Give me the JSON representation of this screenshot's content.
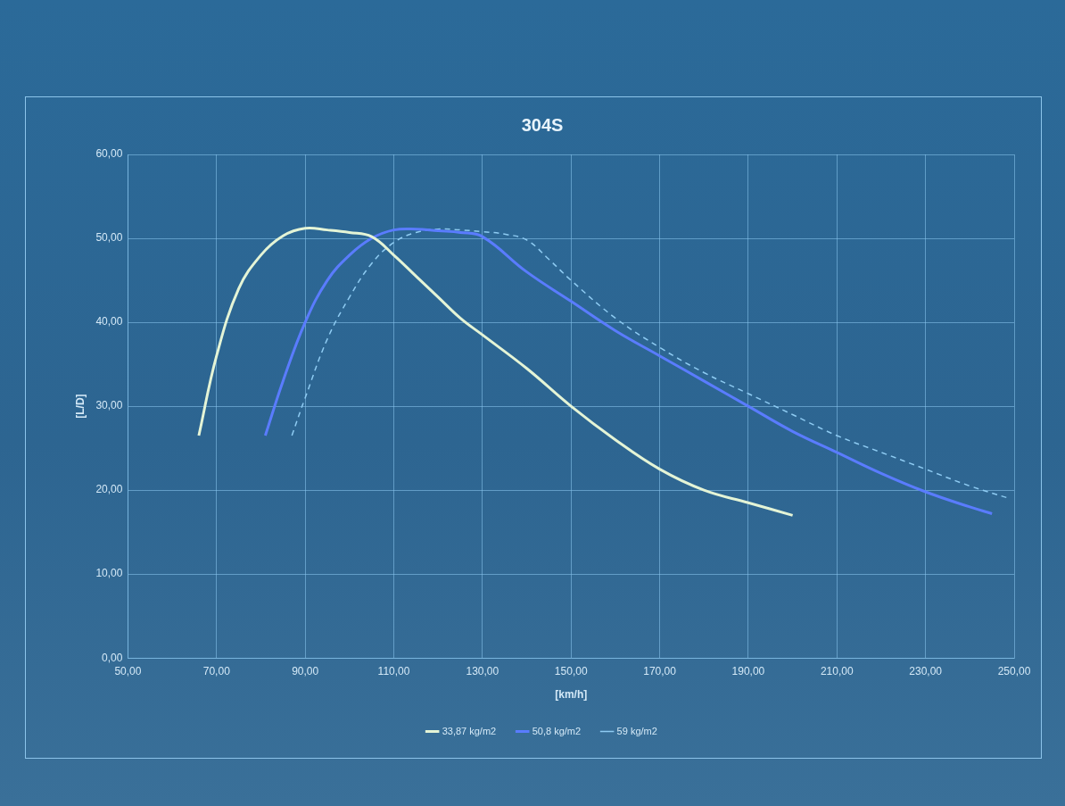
{
  "chart_data": {
    "type": "line",
    "title": "304S",
    "x_label": "[km/h]",
    "y_label": "[L/D]",
    "xlim": [
      50,
      250
    ],
    "xticks": [
      {
        "value": 50,
        "label": "50,00"
      },
      {
        "value": 70,
        "label": "70,00"
      },
      {
        "value": 90,
        "label": "90,00"
      },
      {
        "value": 110,
        "label": "110,00"
      },
      {
        "value": 130,
        "label": "130,00"
      },
      {
        "value": 150,
        "label": "150,00"
      },
      {
        "value": 170,
        "label": "170,00"
      },
      {
        "value": 190,
        "label": "190,00"
      },
      {
        "value": 210,
        "label": "210,00"
      },
      {
        "value": 230,
        "label": "230,00"
      },
      {
        "value": 250,
        "label": "250,00"
      }
    ],
    "ylim": [
      0,
      60
    ],
    "yticks": [
      {
        "value": 0,
        "label": "0,00"
      },
      {
        "value": 10,
        "label": "10,00"
      },
      {
        "value": 20,
        "label": "20,00"
      },
      {
        "value": 30,
        "label": "30,00"
      },
      {
        "value": 40,
        "label": "40,00"
      },
      {
        "value": 50,
        "label": "50,00"
      },
      {
        "value": 60,
        "label": "60,00"
      }
    ],
    "grid": true,
    "legend": "bottom",
    "series": [
      {
        "name": "33,87 kg/m2",
        "color": "#e4f4d6",
        "line_style": "solid",
        "x": [
          66,
          70,
          75,
          80,
          85,
          90,
          95,
          100,
          105,
          110,
          115,
          120,
          125,
          130,
          140,
          150,
          160,
          170,
          180,
          190,
          200
        ],
        "values": [
          26.5,
          36,
          44,
          48,
          50.3,
          51.2,
          51,
          50.7,
          50.2,
          48,
          45.5,
          43,
          40.5,
          38.5,
          34.5,
          30,
          26,
          22.5,
          20,
          18.5,
          17
        ]
      },
      {
        "name": "50,8 kg/m2",
        "color": "#5a7cff",
        "line_style": "solid",
        "x": [
          81,
          85,
          90,
          95,
          100,
          105,
          110,
          115,
          120,
          125,
          130,
          140,
          150,
          160,
          170,
          180,
          190,
          200,
          210,
          220,
          230,
          240,
          245
        ],
        "values": [
          26.5,
          33,
          40,
          45,
          48,
          50,
          51,
          51.1,
          50.9,
          50.7,
          50.2,
          46,
          42.5,
          39,
          36,
          33,
          30,
          27,
          24.5,
          22,
          19.8,
          18,
          17.2
        ]
      },
      {
        "name": "59 kg/m2",
        "color": "#8ecbf2",
        "line_style": "dashed",
        "x": [
          87,
          90,
          95,
          100,
          105,
          110,
          115,
          120,
          125,
          130,
          135,
          140,
          145,
          150,
          160,
          170,
          180,
          190,
          200,
          210,
          220,
          230,
          240,
          249
        ],
        "values": [
          26.5,
          31,
          38,
          43,
          47,
          49.5,
          50.7,
          51.1,
          51,
          50.8,
          50.5,
          49.8,
          47.5,
          45,
          40.5,
          37,
          34,
          31.5,
          29,
          26.5,
          24.5,
          22.5,
          20.5,
          19
        ]
      }
    ]
  }
}
